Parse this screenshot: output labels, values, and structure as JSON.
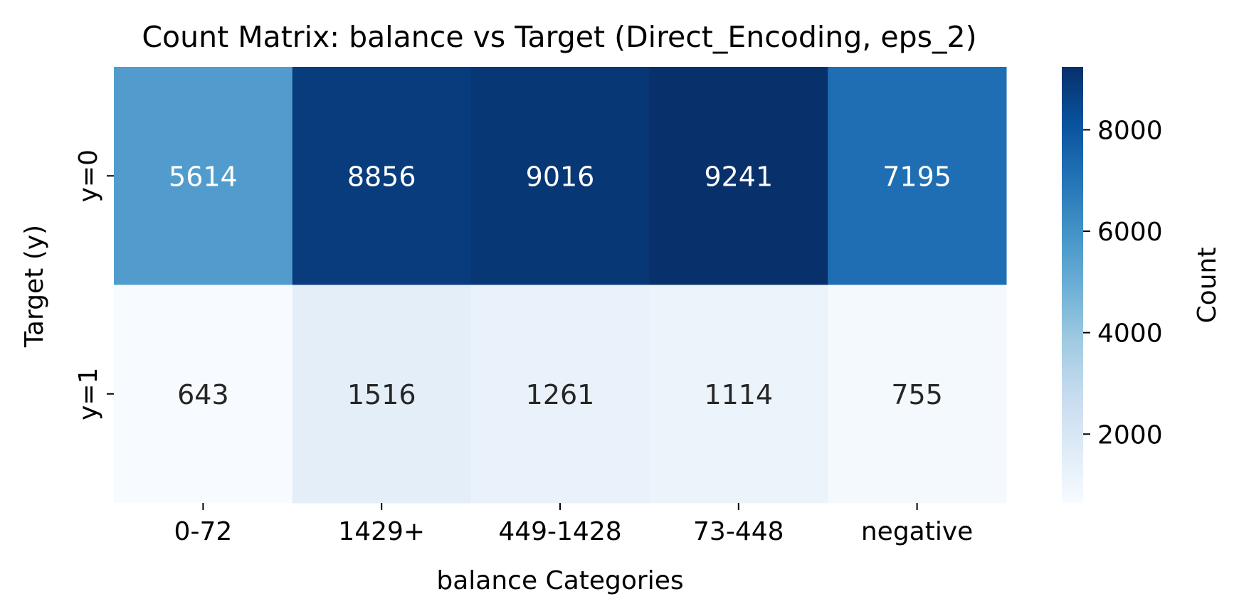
{
  "chart_data": {
    "type": "heatmap",
    "title": "Count Matrix: balance vs Target (Direct_Encoding, eps_2)",
    "xlabel": "balance Categories",
    "ylabel": "Target (y)",
    "x_categories": [
      "0-72",
      "1429+",
      "449-1428",
      "73-448",
      "negative"
    ],
    "y_categories": [
      "y=0",
      "y=1"
    ],
    "values": [
      [
        5614,
        8856,
        9016,
        9241,
        7195
      ],
      [
        643,
        1516,
        1261,
        1114,
        755
      ]
    ],
    "colorbar": {
      "label": "Count",
      "range": [
        643,
        9241
      ],
      "ticks": [
        2000,
        4000,
        6000,
        8000
      ],
      "tick_labels": [
        "2000",
        "4000",
        "6000",
        "8000"
      ],
      "colormap": "Blues"
    }
  }
}
